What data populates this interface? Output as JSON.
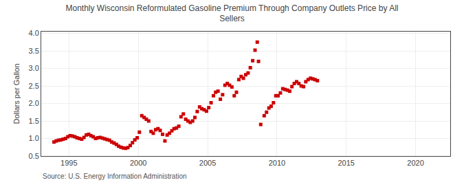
{
  "chart_data": {
    "type": "scatter",
    "title": "Monthly Wisconsin Reformulated Gasoline Premium Through Company Outlets Price by All\nSellers",
    "ylabel": "Dollars per Gallon",
    "annotations": [
      "Source: U.S. Energy Information Administration"
    ],
    "color": "#cc0000",
    "marker": "square",
    "grid": true,
    "xlim": [
      1993.0,
      2022.5
    ],
    "ylim": [
      0.5,
      4.05
    ],
    "xticks": [
      1995,
      2000,
      2005,
      2010,
      2015,
      2020
    ],
    "yticks": [
      0.5,
      {
        "value": 1.0,
        "label": "1.0"
      },
      1.5,
      {
        "value": 2.0,
        "label": "2.0"
      },
      2.5,
      {
        "value": 3.0,
        "label": "3.0"
      },
      3.5,
      {
        "value": 4.0,
        "label": "4.0"
      }
    ],
    "x": [
      1993.92,
      1994.08,
      1994.25,
      1994.42,
      1994.58,
      1994.75,
      1994.92,
      1995.08,
      1995.25,
      1995.42,
      1995.58,
      1995.75,
      1995.92,
      1996.08,
      1996.25,
      1996.42,
      1996.58,
      1996.75,
      1996.92,
      1997.08,
      1997.25,
      1997.42,
      1997.58,
      1997.75,
      1997.92,
      1998.08,
      1998.25,
      1998.42,
      1998.58,
      1998.75,
      1998.92,
      1999.08,
      1999.25,
      1999.42,
      1999.58,
      1999.75,
      1999.92,
      2000.08,
      2000.25,
      2000.42,
      2000.58,
      2000.75,
      2000.92,
      2001.08,
      2001.25,
      2001.42,
      2001.58,
      2001.75,
      2001.92,
      2002.08,
      2002.25,
      2002.42,
      2002.58,
      2002.75,
      2002.92,
      2003.08,
      2003.25,
      2003.42,
      2003.58,
      2003.75,
      2003.92,
      2004.08,
      2004.25,
      2004.42,
      2004.58,
      2004.75,
      2004.92,
      2005.08,
      2005.25,
      2005.42,
      2005.58,
      2005.75,
      2005.92,
      2006.08,
      2006.25,
      2006.42,
      2006.58,
      2006.75,
      2006.92,
      2007.08,
      2007.25,
      2007.42,
      2007.58,
      2007.75,
      2007.92,
      2008.08,
      2008.25,
      2008.42,
      2008.58,
      2008.67,
      2008.83,
      2009.08,
      2009.25,
      2009.42,
      2009.58,
      2009.75,
      2009.92,
      2010.08,
      2010.25,
      2010.42,
      2010.58,
      2010.75,
      2010.92,
      2011.08,
      2011.25,
      2011.42,
      2011.58,
      2011.75,
      2011.92,
      2012.08,
      2012.25,
      2012.42,
      2012.58,
      2012.75,
      2012.92
    ],
    "values": [
      0.9,
      0.93,
      0.95,
      0.96,
      0.98,
      1.0,
      1.05,
      1.08,
      1.07,
      1.05,
      1.02,
      1.0,
      0.98,
      1.03,
      1.1,
      1.12,
      1.08,
      1.05,
      1.0,
      1.02,
      1.03,
      1.01,
      0.99,
      0.97,
      0.95,
      0.9,
      0.87,
      0.83,
      0.78,
      0.75,
      0.73,
      0.72,
      0.74,
      0.8,
      0.88,
      0.96,
      1.02,
      1.18,
      1.65,
      1.6,
      1.55,
      1.5,
      1.2,
      1.15,
      1.25,
      1.28,
      1.23,
      1.12,
      0.93,
      1.1,
      1.15,
      1.22,
      1.28,
      1.3,
      1.35,
      1.62,
      1.7,
      1.55,
      1.5,
      1.46,
      1.5,
      1.6,
      1.77,
      1.9,
      1.85,
      1.82,
      1.78,
      1.88,
      2.02,
      2.22,
      2.32,
      2.35,
      2.12,
      2.25,
      2.52,
      2.57,
      2.52,
      2.47,
      2.22,
      2.32,
      2.68,
      2.77,
      2.72,
      2.82,
      2.87,
      3.02,
      3.22,
      3.52,
      3.75,
      3.2,
      1.4,
      1.65,
      1.75,
      1.87,
      1.92,
      2.02,
      2.22,
      2.22,
      2.3,
      2.42,
      2.4,
      2.38,
      2.35,
      2.48,
      2.57,
      2.62,
      2.57,
      2.5,
      2.48,
      2.62,
      2.68,
      2.72,
      2.7,
      2.68,
      2.65
    ]
  }
}
